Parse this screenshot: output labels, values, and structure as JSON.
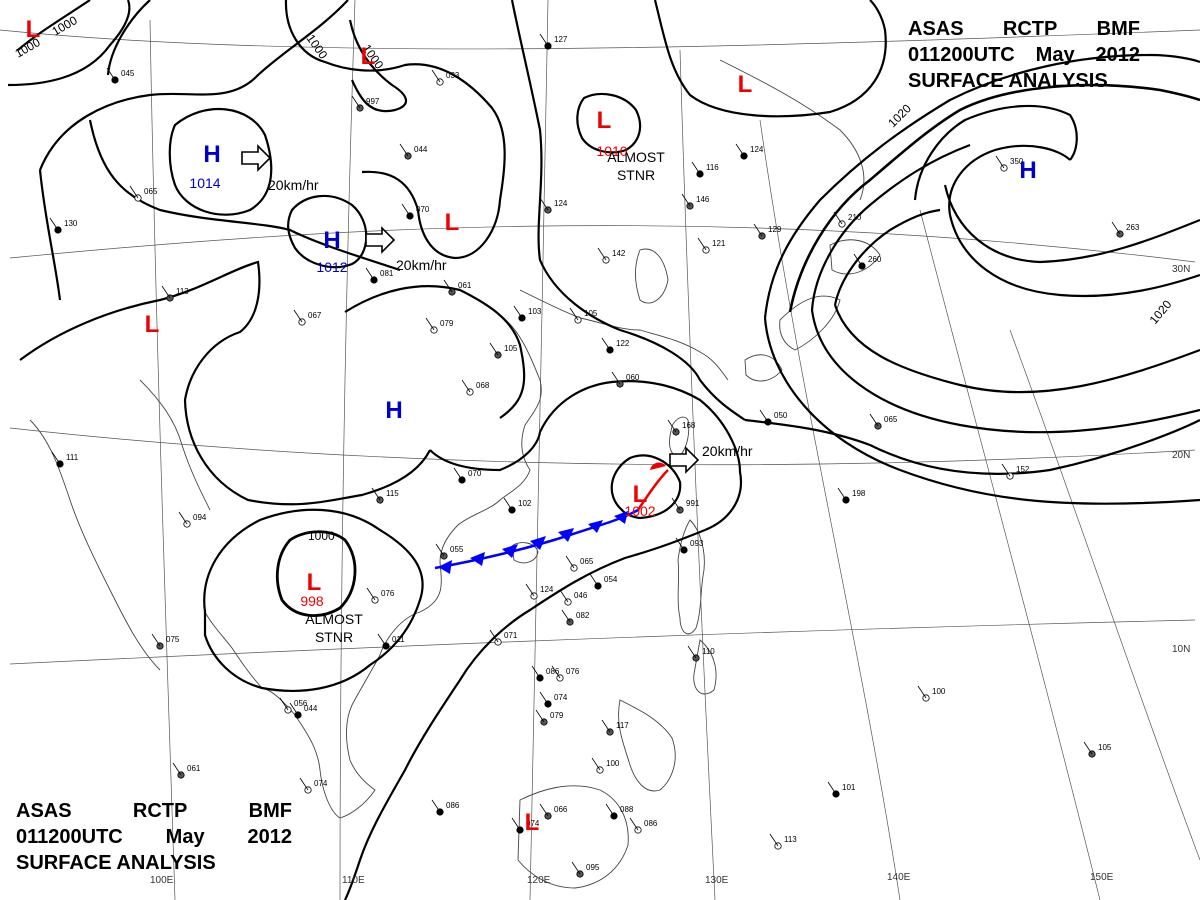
{
  "header": {
    "line1": [
      "ASAS",
      "RCTP",
      "BMF"
    ],
    "line2": [
      "011200UTC",
      "May",
      "2012"
    ],
    "line3": "SURFACE ANALYSIS"
  },
  "lat_labels": [
    "30N",
    "20N",
    "10N"
  ],
  "lon_labels": [
    "100E",
    "110E",
    "120E",
    "130E",
    "140E",
    "150E"
  ],
  "isobar_labels": [
    "1000",
    "1000",
    "1000",
    "1000",
    "1020",
    "1020"
  ],
  "pressure_centers": [
    {
      "type": "H",
      "value": "1014",
      "color": "#0000cc"
    },
    {
      "type": "H",
      "value": "1012",
      "color": "#0000cc"
    },
    {
      "type": "H",
      "value": "",
      "color": "#0000cc"
    },
    {
      "type": "H",
      "value": "",
      "color": "#0000cc"
    },
    {
      "type": "L",
      "value": "1010",
      "color": "#ee0000"
    },
    {
      "type": "L",
      "value": "998",
      "color": "#ee0000"
    },
    {
      "type": "L",
      "value": "1002",
      "color": "#ee0000"
    },
    {
      "type": "L",
      "value": "",
      "color": "#ee0000"
    },
    {
      "type": "L",
      "value": "",
      "color": "#ee0000"
    },
    {
      "type": "L",
      "value": "",
      "color": "#ee0000"
    },
    {
      "type": "L",
      "value": "",
      "color": "#ee0000"
    },
    {
      "type": "L",
      "value": "",
      "color": "#ee0000"
    },
    {
      "type": "L",
      "value": "",
      "color": "#ee0000"
    }
  ],
  "annotations": {
    "almost_stnr": [
      "ALMOST",
      "STNR"
    ],
    "motion": "20km/hr"
  },
  "station_values": [
    "045",
    "997",
    "033",
    "127",
    "044",
    "065",
    "070",
    "124",
    "142",
    "116",
    "146",
    "121",
    "124",
    "129",
    "210",
    "260",
    "263",
    "350",
    "130",
    "113",
    "067",
    "081",
    "061",
    "079",
    "103",
    "105",
    "105",
    "122",
    "060",
    "068",
    "070",
    "115",
    "094",
    "102",
    "055",
    "065",
    "050",
    "065",
    "152",
    "198",
    "168",
    "124",
    "054",
    "082",
    "071",
    "074",
    "079",
    "076",
    "011",
    "075",
    "056",
    "044",
    "061",
    "074",
    "086",
    "066",
    "086",
    "093",
    "110",
    "076",
    "086",
    "117",
    "100",
    "088",
    "095",
    "113",
    "101",
    "105",
    "100",
    "111",
    "991",
    "046",
    "074"
  ]
}
